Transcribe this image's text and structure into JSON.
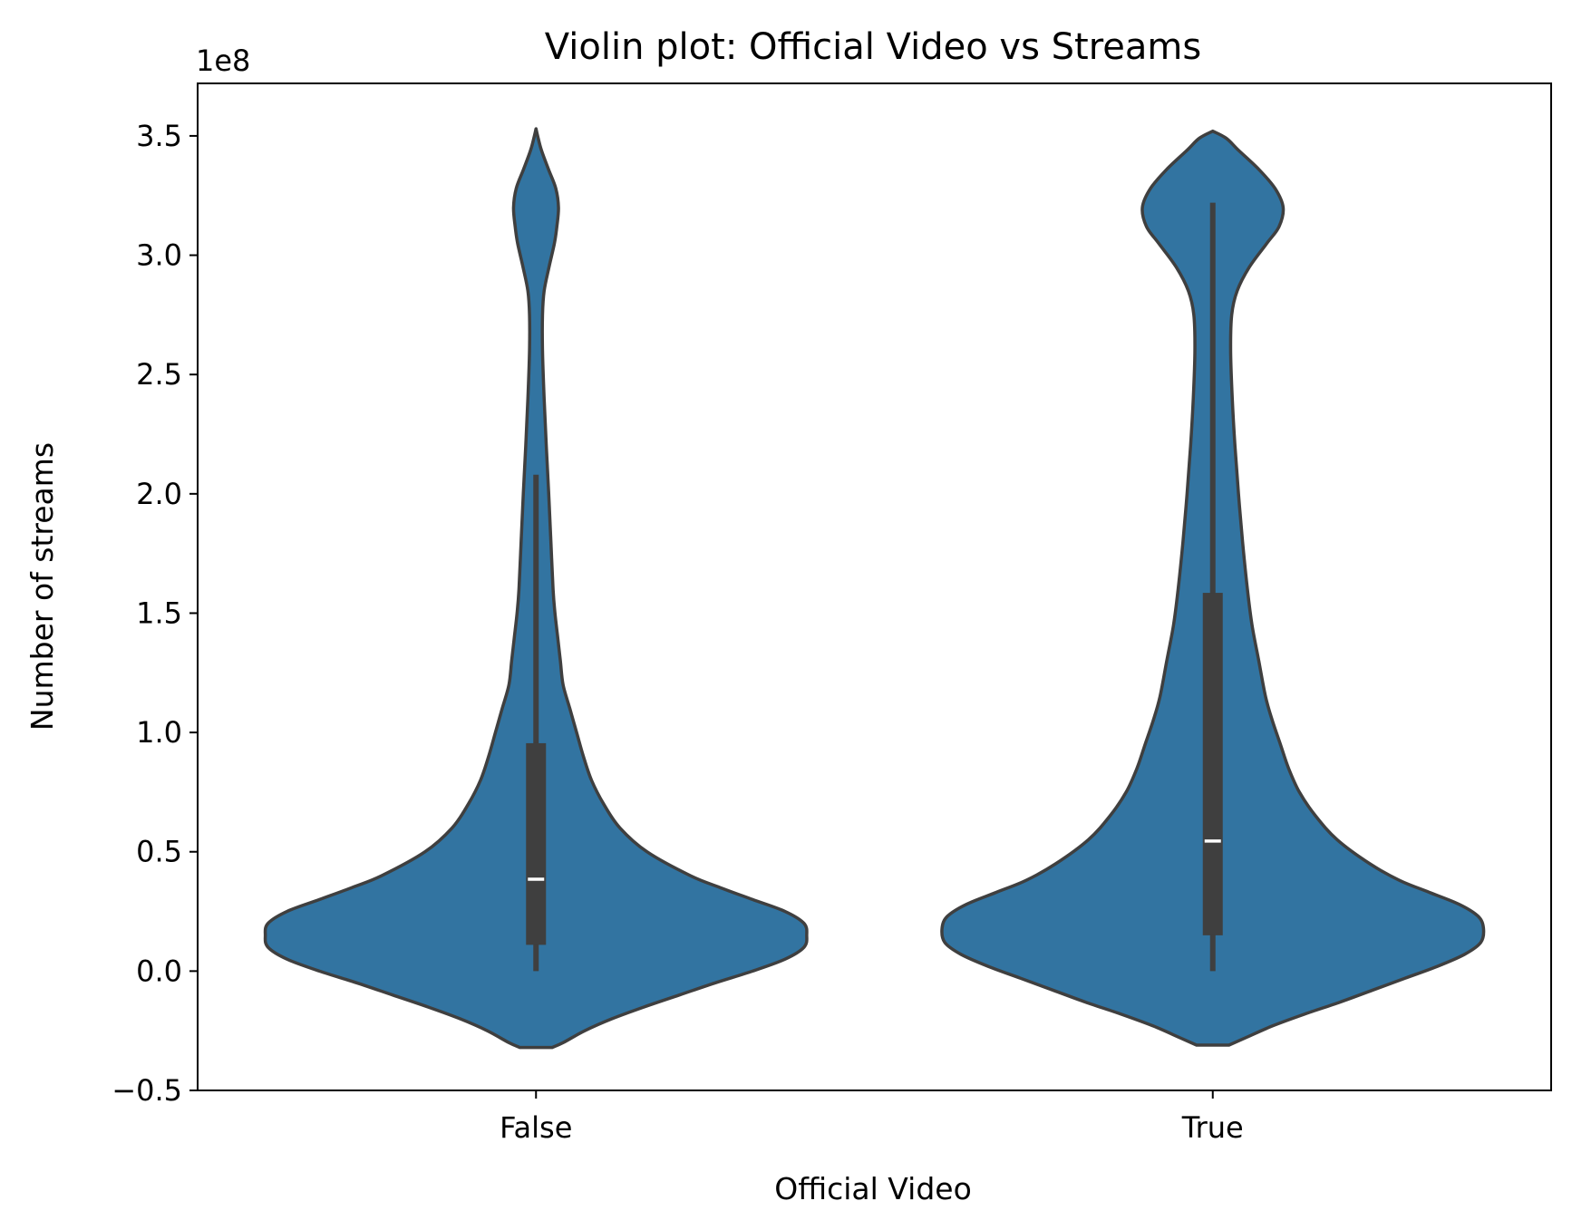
{
  "chart_data": {
    "type": "violin",
    "title": "Violin plot: Official Video vs Streams",
    "xlabel": "Official Video",
    "ylabel": "Number of streams",
    "y_offset_label": "1e8",
    "y_ticks": [
      -0.5,
      0.0,
      0.5,
      1.0,
      1.5,
      2.0,
      2.5,
      3.0,
      3.5
    ],
    "y_tick_labels": [
      "−0.5",
      "0.0",
      "0.5",
      "1.0",
      "1.5",
      "2.0",
      "2.5",
      "3.0",
      "3.5"
    ],
    "ylim": [
      -0.5,
      3.72
    ],
    "categories": [
      "False",
      "True"
    ],
    "y_scale_factor": 100000000,
    "grid": false,
    "colors": {
      "fill": "#3274a1",
      "edge": "#3f3f3f",
      "box": "#3f3f3f",
      "median": "#ffffff"
    },
    "violins": [
      {
        "category": "False",
        "box": {
          "whisker_low": 0.0,
          "q1": 0.11,
          "median": 0.385,
          "q3": 0.955,
          "whisker_high": 2.08
        },
        "density_max_halfwidth": 1.0,
        "density": [
          [
            -0.32,
            0.06
          ],
          [
            -0.3,
            0.1
          ],
          [
            -0.25,
            0.18
          ],
          [
            -0.2,
            0.28
          ],
          [
            -0.15,
            0.4
          ],
          [
            -0.1,
            0.53
          ],
          [
            -0.05,
            0.66
          ],
          [
            0.0,
            0.8
          ],
          [
            0.05,
            0.92
          ],
          [
            0.1,
            0.99
          ],
          [
            0.15,
            1.0
          ],
          [
            0.2,
            0.99
          ],
          [
            0.25,
            0.92
          ],
          [
            0.3,
            0.8
          ],
          [
            0.35,
            0.68
          ],
          [
            0.4,
            0.57
          ],
          [
            0.5,
            0.41
          ],
          [
            0.6,
            0.31
          ],
          [
            0.7,
            0.25
          ],
          [
            0.8,
            0.205
          ],
          [
            0.9,
            0.175
          ],
          [
            1.0,
            0.15
          ],
          [
            1.1,
            0.125
          ],
          [
            1.2,
            0.1
          ],
          [
            1.3,
            0.09
          ],
          [
            1.4,
            0.08
          ],
          [
            1.5,
            0.07
          ],
          [
            1.6,
            0.063
          ],
          [
            1.8,
            0.055
          ],
          [
            2.0,
            0.047
          ],
          [
            2.2,
            0.038
          ],
          [
            2.4,
            0.03
          ],
          [
            2.6,
            0.024
          ],
          [
            2.75,
            0.024
          ],
          [
            2.85,
            0.03
          ],
          [
            2.95,
            0.048
          ],
          [
            3.05,
            0.068
          ],
          [
            3.12,
            0.077
          ],
          [
            3.2,
            0.083
          ],
          [
            3.28,
            0.073
          ],
          [
            3.36,
            0.046
          ],
          [
            3.44,
            0.02
          ],
          [
            3.5,
            0.006
          ],
          [
            3.53,
            0.0
          ]
        ]
      },
      {
        "category": "True",
        "box": {
          "whisker_low": 0.0,
          "q1": 0.15,
          "median": 0.545,
          "q3": 1.585,
          "whisker_high": 3.22
        },
        "density_max_halfwidth": 1.0,
        "density": [
          [
            -0.31,
            0.06
          ],
          [
            -0.28,
            0.12
          ],
          [
            -0.23,
            0.22
          ],
          [
            -0.18,
            0.34
          ],
          [
            -0.13,
            0.47
          ],
          [
            -0.08,
            0.59
          ],
          [
            -0.03,
            0.71
          ],
          [
            0.02,
            0.83
          ],
          [
            0.07,
            0.93
          ],
          [
            0.12,
            0.99
          ],
          [
            0.18,
            1.0
          ],
          [
            0.23,
            0.98
          ],
          [
            0.28,
            0.91
          ],
          [
            0.33,
            0.8
          ],
          [
            0.38,
            0.69
          ],
          [
            0.45,
            0.58
          ],
          [
            0.55,
            0.46
          ],
          [
            0.65,
            0.38
          ],
          [
            0.75,
            0.32
          ],
          [
            0.85,
            0.28
          ],
          [
            0.95,
            0.25
          ],
          [
            1.05,
            0.22
          ],
          [
            1.15,
            0.195
          ],
          [
            1.3,
            0.17
          ],
          [
            1.45,
            0.145
          ],
          [
            1.6,
            0.128
          ],
          [
            1.8,
            0.11
          ],
          [
            2.0,
            0.095
          ],
          [
            2.2,
            0.082
          ],
          [
            2.4,
            0.072
          ],
          [
            2.6,
            0.066
          ],
          [
            2.75,
            0.07
          ],
          [
            2.85,
            0.09
          ],
          [
            2.95,
            0.135
          ],
          [
            3.05,
            0.2
          ],
          [
            3.12,
            0.245
          ],
          [
            3.2,
            0.26
          ],
          [
            3.28,
            0.23
          ],
          [
            3.36,
            0.17
          ],
          [
            3.44,
            0.095
          ],
          [
            3.49,
            0.05
          ],
          [
            3.52,
            0.0
          ]
        ]
      }
    ]
  }
}
